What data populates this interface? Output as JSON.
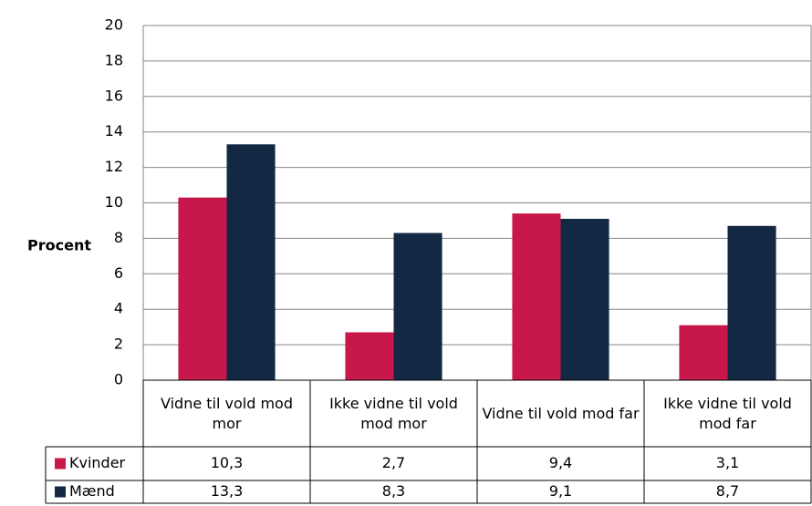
{
  "chart_data": {
    "type": "bar",
    "ylabel": "Procent",
    "categories": [
      "Vidne til vold mod mor",
      "Ikke vidne til vold mod mor",
      "Vidne til vold mod far",
      "Ikke vidne til vold mod far"
    ],
    "series": [
      {
        "name": "Kvinder",
        "color": "#c8174a",
        "values": [
          10.3,
          2.7,
          9.4,
          3.1
        ],
        "value_labels": [
          "10,3",
          "2,7",
          "9,4",
          "3,1"
        ]
      },
      {
        "name": "Mænd",
        "color": "#132843",
        "values": [
          13.3,
          8.3,
          9.1,
          8.7
        ],
        "value_labels": [
          "13,3",
          "8,3",
          "9,1",
          "8,7"
        ]
      }
    ],
    "ylim": [
      0,
      20
    ],
    "yticks": [
      0,
      2,
      4,
      6,
      8,
      10,
      12,
      14,
      16,
      18,
      20
    ],
    "grid": true
  }
}
